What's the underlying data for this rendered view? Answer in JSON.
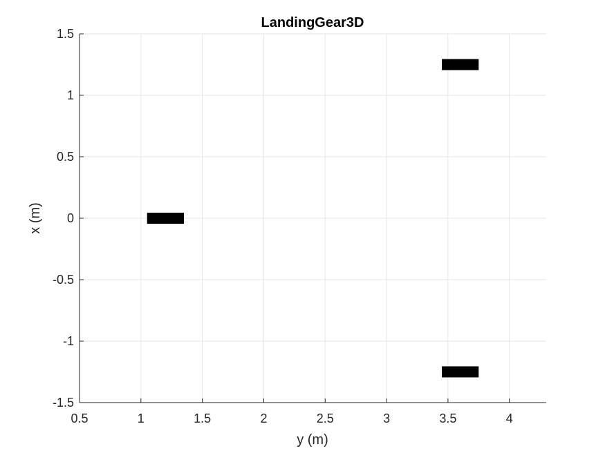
{
  "chart_data": {
    "type": "scatter",
    "title": "LandingGear3D",
    "xlabel": "y (m)",
    "ylabel": "x (m)",
    "xlim": [
      0.5,
      4.3
    ],
    "ylim": [
      -1.5,
      1.5
    ],
    "grid": true,
    "x_ticks": [
      0.5,
      1,
      1.5,
      2,
      2.5,
      3,
      3.5,
      4
    ],
    "y_ticks": [
      -1.5,
      -1,
      -0.5,
      0,
      0.5,
      1,
      1.5
    ],
    "x_tick_labels": [
      "0.5",
      "1",
      "1.5",
      "2",
      "2.5",
      "3",
      "3.5",
      "4"
    ],
    "y_tick_labels": [
      "-1.5",
      "-1",
      "-0.5",
      "0",
      "0.5",
      "1",
      "1.5"
    ],
    "series": [
      {
        "marker": "rectangle",
        "color": "#000000",
        "points": [
          {
            "x_min": 1.05,
            "x_max": 1.35,
            "y_min": -0.045,
            "y_max": 0.045
          },
          {
            "x_min": 3.45,
            "x_max": 3.75,
            "y_min": 1.205,
            "y_max": 1.295
          },
          {
            "x_min": 3.45,
            "x_max": 3.75,
            "y_min": -1.295,
            "y_max": -1.205
          }
        ]
      }
    ]
  },
  "colors": {
    "grid": "#e6e6e6",
    "axis": "#262626",
    "marker": "#000000",
    "background": "#ffffff"
  }
}
